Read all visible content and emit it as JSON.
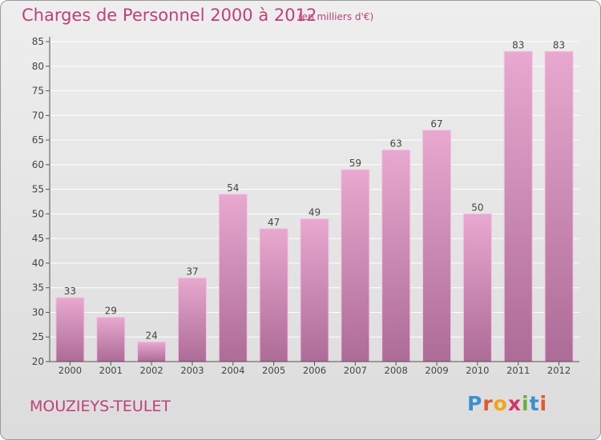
{
  "header": {
    "title": "Charges de Personnel 2000 à 2012",
    "subtitle": "(en milliers d'€)"
  },
  "footer": {
    "commune": "MOUZIEYS-TEULET",
    "logo_letters": [
      "P",
      "r",
      "o",
      "x",
      "i",
      "t",
      "i"
    ],
    "logo_colors": [
      "#3a8fd0",
      "#e4572e",
      "#f2a516",
      "#d6336c",
      "#6cae3c",
      "#3a8fd0",
      "#e4572e"
    ]
  },
  "colors": {
    "title": "#c0407a",
    "bar_top": "#e8a8cf",
    "bar_bottom": "#ad6b97",
    "axis": "#555555",
    "grid": "#ffffff"
  },
  "chart_data": {
    "type": "bar",
    "title": "Charges de Personnel 2000 à 2012",
    "subtitle": "(en milliers d'€)",
    "categories": [
      "2000",
      "2001",
      "2002",
      "2003",
      "2004",
      "2005",
      "2006",
      "2007",
      "2008",
      "2009",
      "2010",
      "2011",
      "2012"
    ],
    "values": [
      33,
      29,
      24,
      37,
      54,
      47,
      49,
      59,
      63,
      67,
      50,
      83,
      83
    ],
    "ylim": [
      20,
      85
    ],
    "yticks": [
      20,
      25,
      30,
      35,
      40,
      45,
      50,
      55,
      60,
      65,
      70,
      75,
      80,
      85
    ],
    "xlabel": "",
    "ylabel": "",
    "grid": true,
    "data_labels": true
  }
}
